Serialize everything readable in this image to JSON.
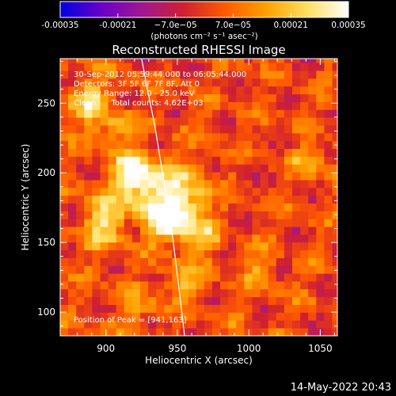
{
  "chart_data": {
    "type": "heatmap",
    "title": "Reconstructed RHESSI Image",
    "xlabel": "Heliocentric X (arcsec)",
    "ylabel": "Heliocentric Y (arcsec)",
    "xlim": [
      868,
      1062
    ],
    "ylim": [
      83,
      282
    ],
    "xticks": [
      900,
      950,
      1000,
      1050
    ],
    "yticks": [
      100,
      150,
      200,
      250
    ],
    "colorbar": {
      "range": [
        -0.00035,
        0.00035
      ],
      "tick_values": [
        -0.00035,
        -0.00021,
        -7e-05,
        7e-05,
        0.00021,
        0.00035
      ],
      "tick_labels": [
        "-0.00035",
        "-0.00021",
        "−7.0e−05",
        "7.0e−05",
        "0.00021",
        "0.00035"
      ],
      "units_label": "(photons cm⁻² s⁻¹ asec⁻²)",
      "colormap": [
        "#0000e0",
        "#6a00c8",
        "#a01890",
        "#d02030",
        "#ff5a00",
        "#ffa000",
        "#ffe060",
        "#ffffff"
      ]
    },
    "annotations": [
      "30-Sep-2012 05:59:44.000 to 06:05:44.000",
      "Detectors: 3F 5F 6F 7F 8F, Att 0",
      "Energy Range: 12.0 - 25.0 keV",
      "Clean      Total counts: 4.62E+03"
    ],
    "peak_label": "Position of Peak = [941,163]",
    "peak": [
      941,
      163
    ],
    "limb_curve": {
      "x": [
        925,
        929,
        934,
        938,
        942,
        946,
        949,
        952,
        955
      ],
      "y": [
        282,
        260,
        235,
        210,
        185,
        160,
        135,
        110,
        83
      ]
    },
    "sources": [
      {
        "x": 941,
        "y": 163,
        "amp": 0.00034,
        "sx": 10,
        "sy": 10
      },
      {
        "x": 926,
        "y": 188,
        "amp": 0.00027,
        "sx": 12,
        "sy": 14
      },
      {
        "x": 915,
        "y": 200,
        "amp": 0.00024,
        "sx": 9,
        "sy": 10
      },
      {
        "x": 955,
        "y": 180,
        "amp": 0.00022,
        "sx": 12,
        "sy": 15
      },
      {
        "x": 897,
        "y": 163,
        "amp": 0.00023,
        "sx": 10,
        "sy": 14
      },
      {
        "x": 963,
        "y": 150,
        "amp": 0.00018,
        "sx": 9,
        "sy": 9
      },
      {
        "x": 885,
        "y": 248,
        "amp": 0.0002,
        "sx": 11,
        "sy": 12
      },
      {
        "x": 905,
        "y": 228,
        "amp": 0.00016,
        "sx": 9,
        "sy": 8
      },
      {
        "x": 952,
        "y": 118,
        "amp": 0.00017,
        "sx": 10,
        "sy": 9
      },
      {
        "x": 1040,
        "y": 205,
        "amp": 0.00015,
        "sx": 9,
        "sy": 8
      },
      {
        "x": 1005,
        "y": 128,
        "amp": 0.00012,
        "sx": 10,
        "sy": 8
      },
      {
        "x": 920,
        "y": 100,
        "amp": 0.0001,
        "sx": 10,
        "sy": 9
      }
    ]
  },
  "footer": {
    "timestamp": "14-May-2022 20:43"
  }
}
